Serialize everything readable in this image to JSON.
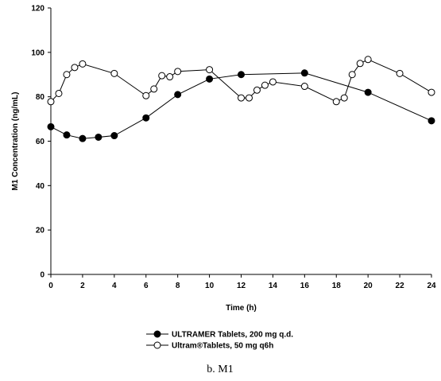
{
  "chart_data": {
    "type": "line",
    "xlabel": "Time (h)",
    "ylabel": "M1 Concentration (ng/mL)",
    "xlim": [
      0,
      24
    ],
    "ylim": [
      0,
      120
    ],
    "x_ticks": [
      0,
      2,
      4,
      6,
      8,
      10,
      12,
      14,
      16,
      18,
      20,
      22,
      24
    ],
    "y_ticks": [
      0,
      20,
      40,
      60,
      80,
      100,
      120
    ],
    "grid": false,
    "legend_position": "bottom-center",
    "series": [
      {
        "name": "ULTRAMER Tablets, 200 mg q.d.",
        "marker": "filled-circle",
        "color": "#000000",
        "points": [
          [
            0,
            66.5
          ],
          [
            1,
            62.8
          ],
          [
            2,
            61.2
          ],
          [
            3,
            61.8
          ],
          [
            4,
            62.5
          ],
          [
            6,
            70.5
          ],
          [
            8,
            81
          ],
          [
            10,
            88
          ],
          [
            12,
            90
          ],
          [
            16,
            90.7
          ],
          [
            20,
            82
          ],
          [
            24,
            69.2
          ]
        ]
      },
      {
        "name": "Ultram®Tablets, 50 mg q6h",
        "marker": "open-circle",
        "color": "#000000",
        "points": [
          [
            0,
            77.8
          ],
          [
            0.5,
            81.5
          ],
          [
            1,
            90
          ],
          [
            1.5,
            93.2
          ],
          [
            2,
            94.8
          ],
          [
            4,
            90.5
          ],
          [
            6,
            80.5
          ],
          [
            6.5,
            83.5
          ],
          [
            7,
            89.5
          ],
          [
            7.5,
            89
          ],
          [
            8,
            91.4
          ],
          [
            10,
            92.2
          ],
          [
            12,
            79.5
          ],
          [
            12.5,
            79.5
          ],
          [
            13,
            83
          ],
          [
            13.5,
            85.2
          ],
          [
            14,
            86.7
          ],
          [
            16,
            84.7
          ],
          [
            18,
            77.8
          ],
          [
            18.5,
            79.5
          ],
          [
            19,
            90
          ],
          [
            19.5,
            95
          ],
          [
            20,
            96.8
          ],
          [
            22,
            90.5
          ],
          [
            24,
            82
          ]
        ]
      }
    ],
    "caption": "b. M1"
  }
}
